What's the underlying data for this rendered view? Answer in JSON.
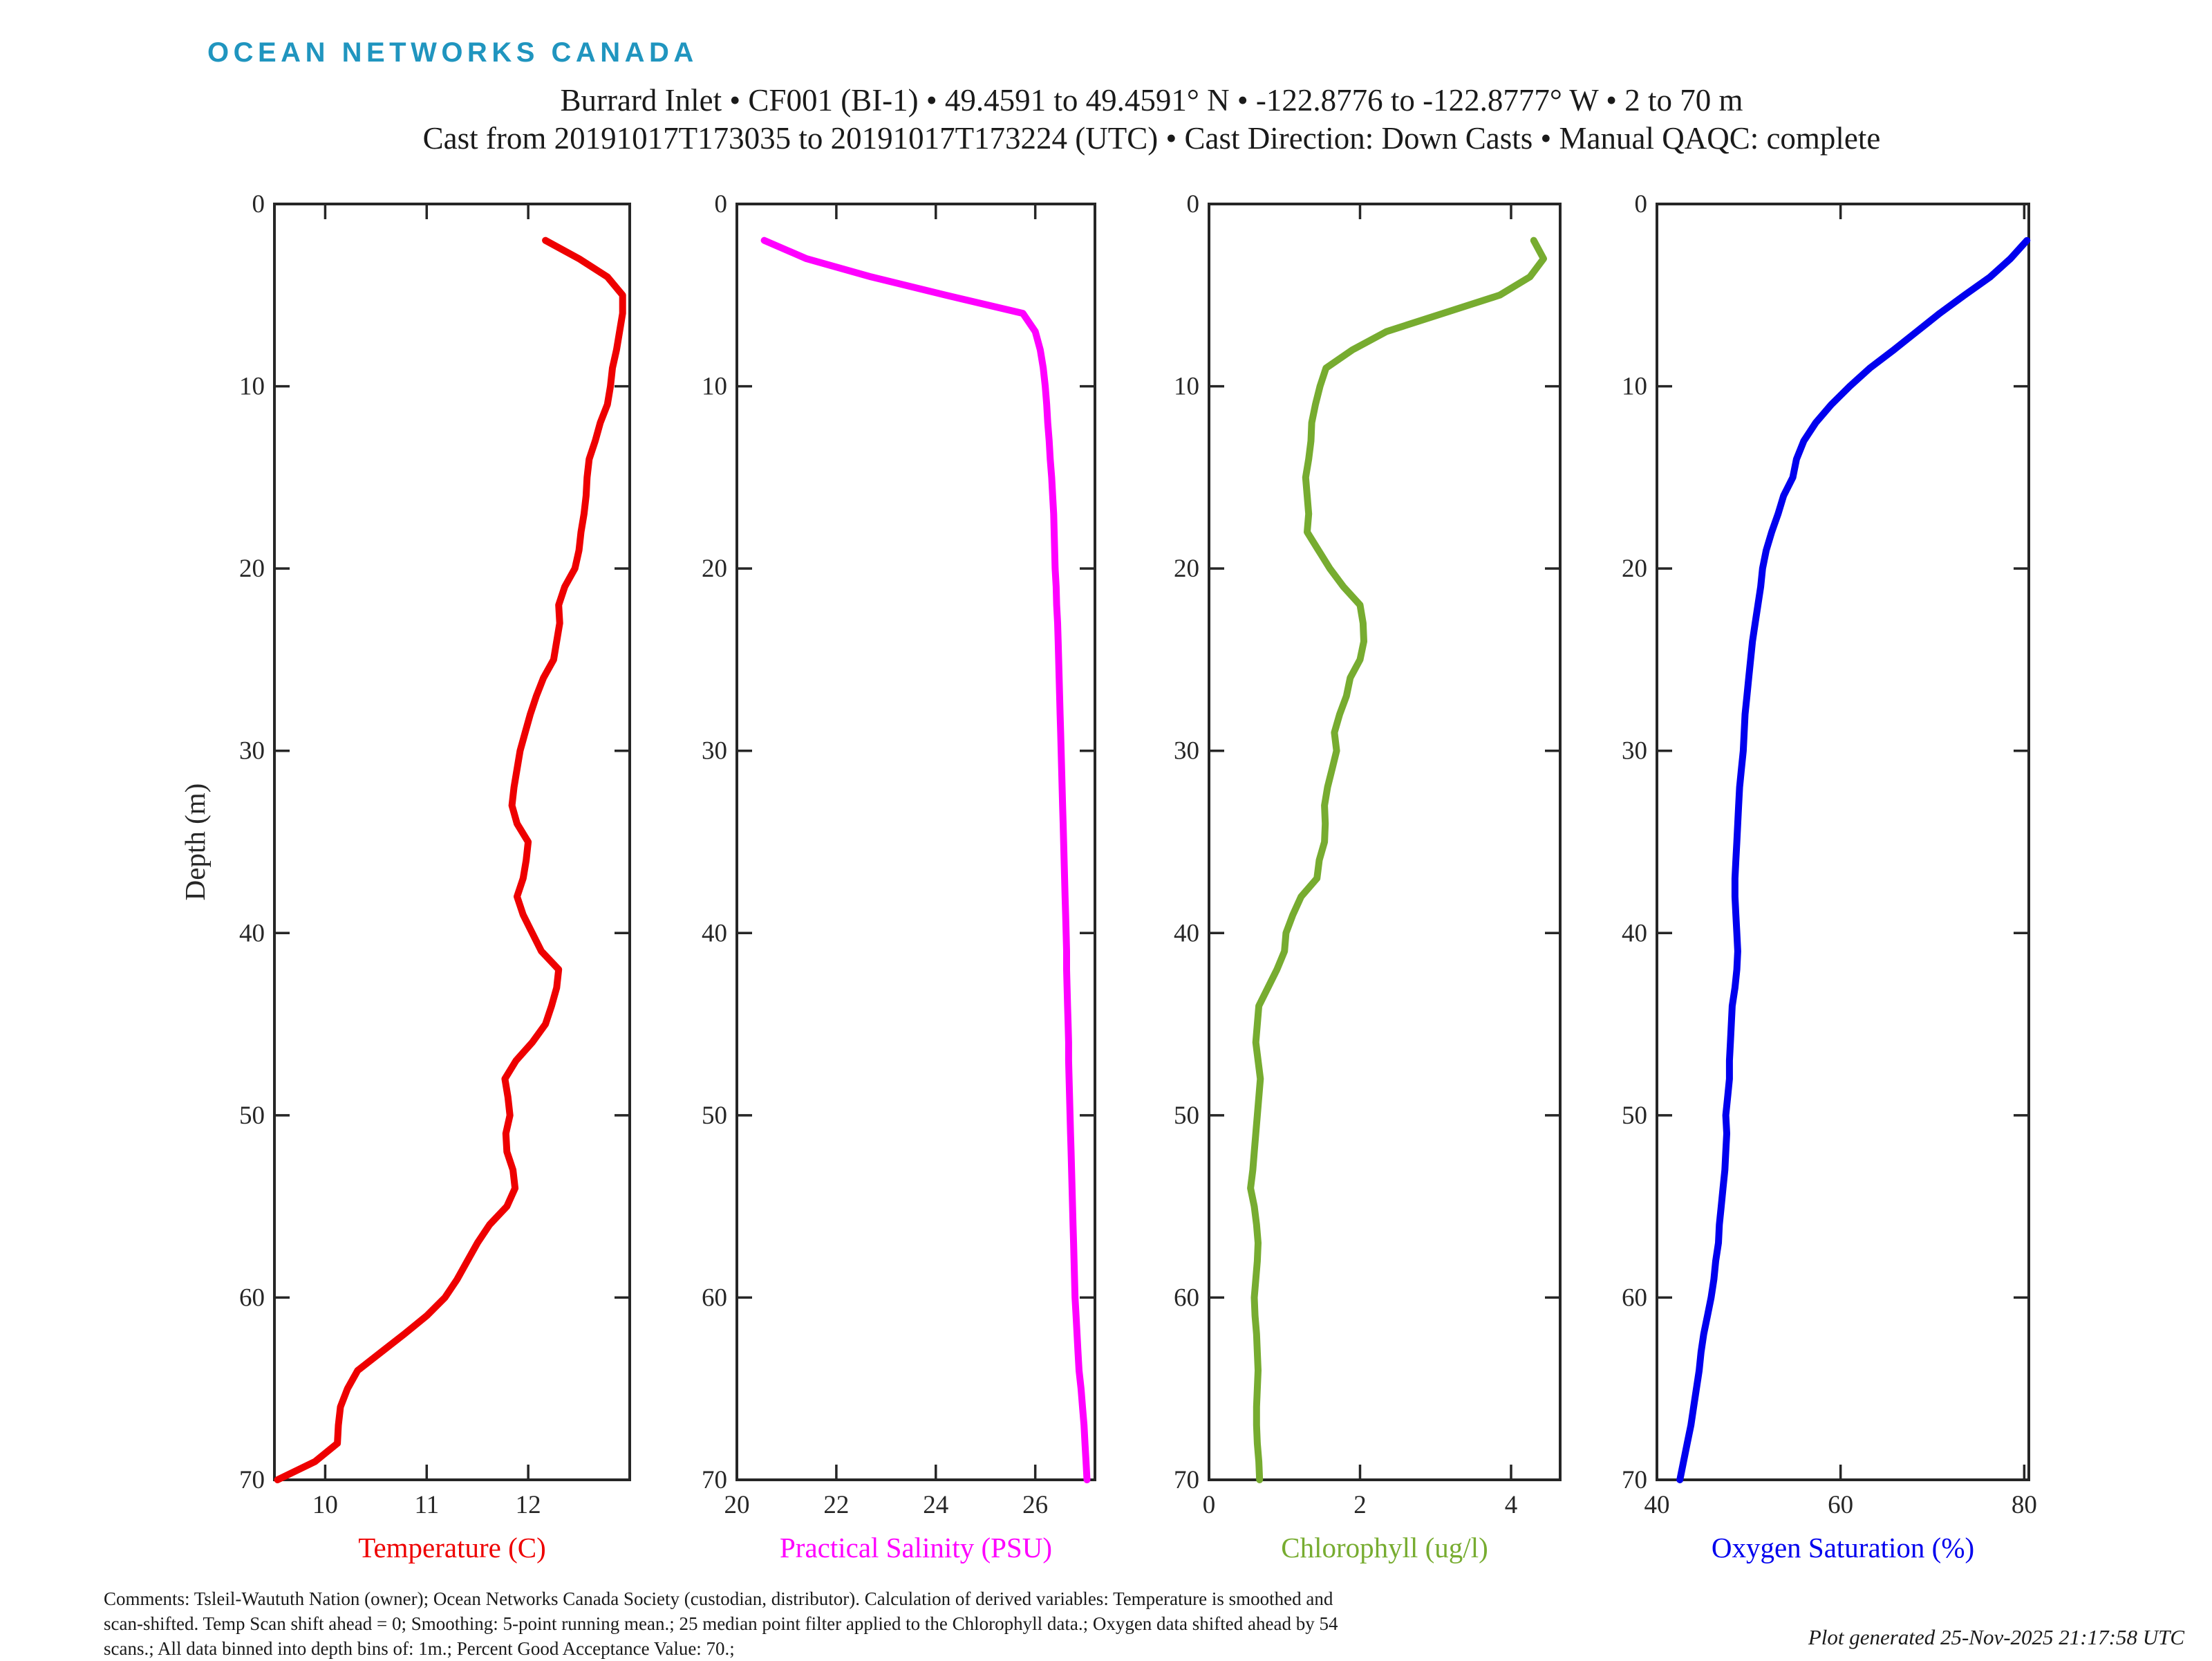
{
  "logo": {
    "text": "OCEAN NETWORKS CANADA",
    "color": "#2095bf"
  },
  "title": {
    "line1": "Burrard Inlet • CF001 (BI-1) • 49.4591 to 49.4591° N • -122.8776 to -122.8777° W • 2 to 70 m",
    "line2": "Cast from 20191017T173035 to 20191017T173224 (UTC) • Cast Direction: Down Casts • Manual QAQC: complete"
  },
  "footer": {
    "comments_line1": "Comments: Tsleil-Waututh Nation (owner); Ocean Networks Canada Society (custodian, distributor). Calculation of derived variables: Temperature is smoothed and",
    "comments_line2": "scan-shifted. Temp Scan shift ahead = 0; Smoothing: 5-point running mean.; 25 median point filter applied to the Chlorophyll data.; Oxygen data shifted ahead by 54",
    "comments_line3": "scans.; All data binned into depth bins of: 1m.; Percent Good Acceptance Value: 70.;",
    "generated": "Plot generated 25-Nov-2025 21:17:58 UTC"
  },
  "axis_style": {
    "frame_color": "#262626",
    "text_color": "#262626"
  },
  "chart_data": [
    {
      "type": "line",
      "name": "temperature",
      "xlabel": "Temperature (C)",
      "color": "#ee0000",
      "xlim": [
        9.5,
        13.0
      ],
      "xticks": [
        10,
        11,
        12
      ],
      "ylabel": "Depth (m)",
      "ylim": [
        0,
        70
      ],
      "yticks": [
        0,
        10,
        20,
        30,
        40,
        50,
        60,
        70
      ],
      "depth_m": [
        2,
        3,
        4,
        5,
        6,
        7,
        8,
        9,
        10,
        11,
        12,
        13,
        14,
        15,
        16,
        17,
        18,
        19,
        20,
        21,
        22,
        23,
        24,
        25,
        26,
        27,
        28,
        29,
        30,
        31,
        32,
        33,
        34,
        35,
        36,
        37,
        38,
        39,
        40,
        41,
        42,
        43,
        44,
        45,
        46,
        47,
        48,
        49,
        50,
        51,
        52,
        53,
        54,
        55,
        56,
        57,
        58,
        59,
        60,
        61,
        62,
        63,
        64,
        65,
        66,
        67,
        68,
        69,
        70
      ],
      "values": [
        12.17,
        12.5,
        12.78,
        12.93,
        12.93,
        12.9,
        12.87,
        12.83,
        12.81,
        12.78,
        12.71,
        12.66,
        12.6,
        12.58,
        12.57,
        12.55,
        12.52,
        12.5,
        12.46,
        12.36,
        12.3,
        12.31,
        12.28,
        12.25,
        12.15,
        12.08,
        12.02,
        11.97,
        11.92,
        11.89,
        11.86,
        11.84,
        11.89,
        12.0,
        11.98,
        11.95,
        11.89,
        11.95,
        12.04,
        12.13,
        12.3,
        12.28,
        12.23,
        12.17,
        12.04,
        11.88,
        11.77,
        11.8,
        11.82,
        11.78,
        11.79,
        11.85,
        11.87,
        11.79,
        11.62,
        11.5,
        11.4,
        11.3,
        11.18,
        11.0,
        10.78,
        10.55,
        10.32,
        10.22,
        10.15,
        10.13,
        10.12,
        9.9,
        9.53
      ]
    },
    {
      "type": "line",
      "name": "salinity",
      "xlabel": "Practical Salinity (PSU)",
      "color": "#ff00ff",
      "xlim": [
        20.0,
        27.2
      ],
      "xticks": [
        20,
        22,
        24,
        26
      ],
      "ylabel": "",
      "ylim": [
        0,
        70
      ],
      "yticks": [
        0,
        10,
        20,
        30,
        40,
        50,
        60,
        70
      ],
      "depth_m": [
        2,
        3,
        4,
        5,
        6,
        7,
        8,
        9,
        10,
        11,
        12,
        13,
        14,
        15,
        16,
        17,
        18,
        19,
        20,
        21,
        22,
        23,
        24,
        25,
        26,
        27,
        28,
        29,
        30,
        31,
        32,
        33,
        34,
        35,
        36,
        37,
        38,
        39,
        40,
        41,
        42,
        43,
        44,
        45,
        46,
        47,
        48,
        49,
        50,
        51,
        52,
        53,
        54,
        55,
        56,
        57,
        58,
        59,
        60,
        61,
        62,
        63,
        64,
        65,
        66,
        67,
        68,
        69,
        70
      ],
      "values": [
        20.55,
        21.4,
        22.7,
        24.2,
        25.75,
        26.0,
        26.1,
        26.16,
        26.2,
        26.23,
        26.25,
        26.28,
        26.3,
        26.33,
        26.35,
        26.37,
        26.38,
        26.39,
        26.4,
        26.42,
        26.43,
        26.45,
        26.46,
        26.47,
        26.48,
        26.49,
        26.5,
        26.51,
        26.52,
        26.53,
        26.54,
        26.55,
        26.56,
        26.57,
        26.58,
        26.59,
        26.6,
        26.61,
        26.62,
        26.63,
        26.63,
        26.64,
        26.65,
        26.66,
        26.67,
        26.67,
        26.68,
        26.69,
        26.7,
        26.71,
        26.72,
        26.73,
        26.74,
        26.75,
        26.76,
        26.77,
        26.78,
        26.79,
        26.8,
        26.82,
        26.84,
        26.86,
        26.88,
        26.92,
        26.95,
        26.98,
        27.0,
        27.02,
        27.04
      ]
    },
    {
      "type": "line",
      "name": "chlorophyll",
      "xlabel": "Chlorophyll (ug/l)",
      "color": "#77ac30",
      "xlim": [
        0,
        4.65
      ],
      "xticks": [
        0,
        2,
        4
      ],
      "ylabel": "",
      "ylim": [
        0,
        70
      ],
      "yticks": [
        0,
        10,
        20,
        30,
        40,
        50,
        60,
        70
      ],
      "depth_m": [
        2,
        3,
        4,
        5,
        6,
        7,
        8,
        9,
        10,
        11,
        12,
        13,
        14,
        15,
        16,
        17,
        18,
        19,
        20,
        21,
        22,
        23,
        24,
        25,
        26,
        27,
        28,
        29,
        30,
        31,
        32,
        33,
        34,
        35,
        36,
        37,
        38,
        39,
        40,
        41,
        42,
        43,
        44,
        45,
        46,
        47,
        48,
        49,
        50,
        51,
        52,
        53,
        54,
        55,
        56,
        57,
        58,
        59,
        60,
        61,
        62,
        63,
        64,
        65,
        66,
        67,
        68,
        69,
        70
      ],
      "values": [
        4.3,
        4.43,
        4.25,
        3.85,
        3.1,
        2.35,
        1.9,
        1.55,
        1.47,
        1.41,
        1.36,
        1.35,
        1.32,
        1.28,
        1.3,
        1.32,
        1.3,
        1.45,
        1.6,
        1.78,
        2.0,
        2.04,
        2.05,
        2.0,
        1.87,
        1.82,
        1.73,
        1.66,
        1.69,
        1.63,
        1.57,
        1.53,
        1.54,
        1.53,
        1.46,
        1.43,
        1.22,
        1.11,
        1.02,
        1.0,
        0.9,
        0.78,
        0.66,
        0.64,
        0.62,
        0.65,
        0.68,
        0.66,
        0.64,
        0.62,
        0.6,
        0.58,
        0.55,
        0.6,
        0.63,
        0.65,
        0.64,
        0.62,
        0.6,
        0.61,
        0.63,
        0.64,
        0.65,
        0.64,
        0.63,
        0.63,
        0.64,
        0.66,
        0.67
      ]
    },
    {
      "type": "line",
      "name": "oxygen-saturation",
      "xlabel": "Oxygen Saturation (%)",
      "color": "#0000ee",
      "xlim": [
        40,
        80.5
      ],
      "xticks": [
        40,
        60,
        80
      ],
      "ylabel": "",
      "ylim": [
        0,
        70
      ],
      "yticks": [
        0,
        10,
        20,
        30,
        40,
        50,
        60,
        70
      ],
      "depth_m": [
        2,
        3,
        4,
        5,
        6,
        7,
        8,
        9,
        10,
        11,
        12,
        13,
        14,
        15,
        16,
        17,
        18,
        19,
        20,
        21,
        22,
        23,
        24,
        25,
        26,
        27,
        28,
        29,
        30,
        31,
        32,
        33,
        34,
        35,
        36,
        37,
        38,
        39,
        40,
        41,
        42,
        43,
        44,
        45,
        46,
        47,
        48,
        49,
        50,
        51,
        52,
        53,
        54,
        55,
        56,
        57,
        58,
        59,
        60,
        61,
        62,
        63,
        64,
        65,
        66,
        67,
        68,
        69,
        70
      ],
      "values": [
        80.3,
        78.5,
        76.3,
        73.5,
        70.8,
        68.3,
        65.8,
        63.2,
        61.0,
        59.0,
        57.3,
        56.0,
        55.2,
        54.8,
        53.8,
        53.2,
        52.5,
        51.9,
        51.5,
        51.3,
        51.0,
        50.7,
        50.4,
        50.2,
        50.0,
        49.8,
        49.6,
        49.5,
        49.4,
        49.2,
        49.0,
        48.9,
        48.8,
        48.7,
        48.6,
        48.5,
        48.5,
        48.6,
        48.7,
        48.8,
        48.7,
        48.5,
        48.2,
        48.1,
        48.0,
        47.9,
        47.9,
        47.7,
        47.5,
        47.6,
        47.5,
        47.4,
        47.2,
        47.0,
        46.8,
        46.7,
        46.4,
        46.2,
        45.9,
        45.5,
        45.1,
        44.8,
        44.6,
        44.3,
        44.0,
        43.7,
        43.3,
        42.9,
        42.5
      ]
    }
  ]
}
